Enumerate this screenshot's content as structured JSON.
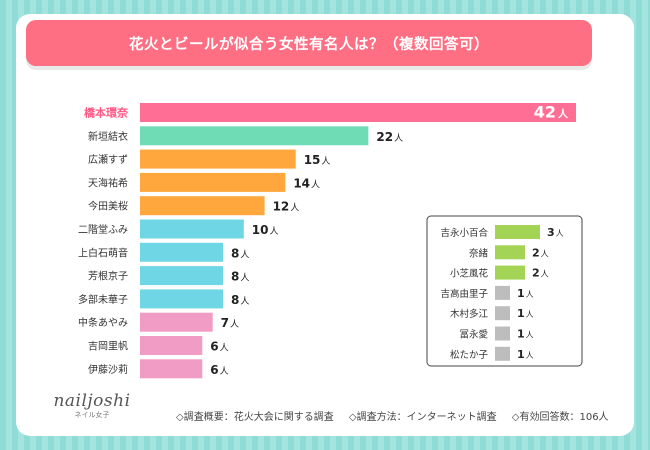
{
  "title": "花火とビールが似合う女性有名人は？（複数回答可）",
  "unit": "人",
  "footer": {
    "overview": "◇調査概要：花火大会に関する調査",
    "method": "◇調査方法：インターネット調査",
    "respondents": "◇有効回答数：106人"
  },
  "logo": {
    "main": "nailjoshi",
    "sub": "ネイル女子"
  },
  "colors": {
    "background": "#8fdcd6",
    "title_bar": "#ff6f84",
    "rank1": "#ff6f95",
    "teal": "#6fdcb6",
    "orange": "#ffa63d",
    "cyan": "#6fd6e6",
    "pink": "#f09cc5",
    "green": "#a3d455",
    "gray": "#bdbdbd"
  },
  "chart_data": [
    {
      "type": "bar",
      "orientation": "horizontal",
      "categories": [
        "橋本環奈",
        "新垣結衣",
        "広瀬すず",
        "天海祐希",
        "今田美桜",
        "二階堂ふみ",
        "上白石萌音",
        "芳根京子",
        "多部未華子",
        "中条あやみ",
        "吉岡里帆",
        "伊藤沙莉"
      ],
      "values": [
        42,
        22,
        15,
        14,
        12,
        10,
        8,
        8,
        8,
        7,
        6,
        6
      ],
      "color_keys": [
        "rank1",
        "teal",
        "orange",
        "orange",
        "orange",
        "cyan",
        "cyan",
        "cyan",
        "cyan",
        "pink",
        "pink",
        "pink"
      ],
      "xlim": [
        0,
        42
      ],
      "unit": "人"
    },
    {
      "type": "bar",
      "orientation": "horizontal",
      "categories": [
        "吉永小百合",
        "奈緒",
        "小芝風花",
        "吉高由里子",
        "木村多江",
        "冨永愛",
        "松たか子"
      ],
      "values": [
        3,
        2,
        2,
        1,
        1,
        1,
        1
      ],
      "color_keys": [
        "green",
        "green",
        "green",
        "gray",
        "gray",
        "gray",
        "gray"
      ],
      "xlim": [
        0,
        3
      ],
      "unit": "人"
    }
  ]
}
